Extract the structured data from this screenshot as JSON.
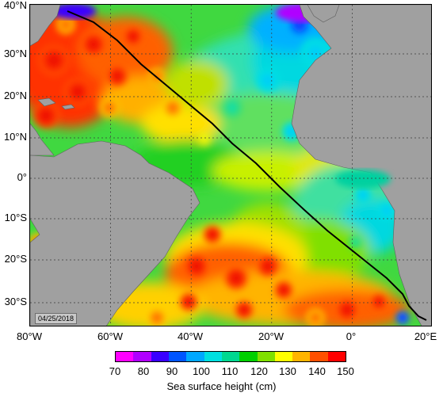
{
  "map": {
    "lat_labels": [
      "40°N",
      "30°N",
      "20°N",
      "10°N",
      "0°",
      "10°S",
      "20°S",
      "30°S"
    ],
    "lon_labels": [
      "80°W",
      "60°W",
      "40°W",
      "20°W",
      "0°",
      "20°E"
    ],
    "date": "04/25/2018",
    "land_color": "#a0a0a0",
    "track_color": "#000000"
  },
  "colorbar": {
    "title": "Sea surface height (cm)",
    "tick_labels": [
      "70",
      "80",
      "90",
      "100",
      "110",
      "120",
      "130",
      "140",
      "150"
    ],
    "colors": [
      "#ff00ff",
      "#b000ff",
      "#3a00ff",
      "#0055ff",
      "#00a8ff",
      "#00e0e0",
      "#00d890",
      "#00d000",
      "#80e000",
      "#ffff00",
      "#ffb400",
      "#ff5000",
      "#ff0000"
    ]
  }
}
